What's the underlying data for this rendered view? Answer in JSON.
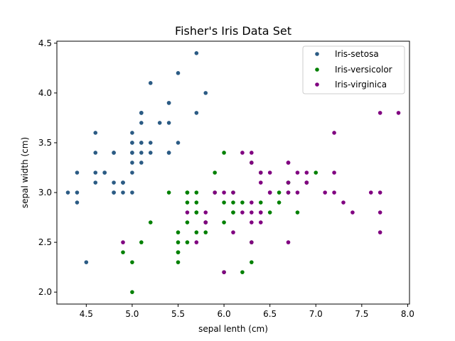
{
  "chart_data": {
    "type": "scatter",
    "title": "Fisher's Iris Data Set",
    "xlabel": "sepal lenth (cm)",
    "ylabel": "sepal width (cm)",
    "xlim": [
      4.18,
      8.02
    ],
    "ylim": [
      1.88,
      4.52
    ],
    "xticks": [
      "4.5",
      "5.0",
      "5.5",
      "6.0",
      "6.5",
      "7.0",
      "7.5",
      "8.0"
    ],
    "yticks": [
      "2.0",
      "2.5",
      "3.0",
      "3.5",
      "4.0",
      "4.5"
    ],
    "grid": false,
    "legend_position": "top-right",
    "series": [
      {
        "name": "Iris-setosa",
        "color": "#2b5b84",
        "points": [
          [
            5.1,
            3.5
          ],
          [
            4.9,
            3.0
          ],
          [
            4.7,
            3.2
          ],
          [
            4.6,
            3.1
          ],
          [
            5.0,
            3.6
          ],
          [
            5.4,
            3.9
          ],
          [
            4.6,
            3.4
          ],
          [
            5.0,
            3.4
          ],
          [
            4.4,
            2.9
          ],
          [
            4.9,
            3.1
          ],
          [
            5.4,
            3.7
          ],
          [
            4.8,
            3.4
          ],
          [
            4.8,
            3.0
          ],
          [
            4.3,
            3.0
          ],
          [
            5.8,
            4.0
          ],
          [
            5.7,
            4.4
          ],
          [
            5.4,
            3.9
          ],
          [
            5.1,
            3.5
          ],
          [
            5.7,
            3.8
          ],
          [
            5.1,
            3.8
          ],
          [
            5.4,
            3.4
          ],
          [
            5.1,
            3.7
          ],
          [
            4.6,
            3.6
          ],
          [
            5.1,
            3.3
          ],
          [
            4.8,
            3.4
          ],
          [
            5.0,
            3.0
          ],
          [
            5.0,
            3.4
          ],
          [
            5.2,
            3.5
          ],
          [
            5.2,
            3.4
          ],
          [
            4.7,
            3.2
          ],
          [
            4.8,
            3.1
          ],
          [
            5.4,
            3.4
          ],
          [
            5.2,
            4.1
          ],
          [
            5.5,
            4.2
          ],
          [
            4.9,
            3.1
          ],
          [
            5.0,
            3.2
          ],
          [
            5.5,
            3.5
          ],
          [
            4.9,
            3.1
          ],
          [
            4.4,
            3.0
          ],
          [
            5.1,
            3.4
          ],
          [
            5.0,
            3.5
          ],
          [
            4.5,
            2.3
          ],
          [
            4.4,
            3.2
          ],
          [
            5.0,
            3.5
          ],
          [
            5.1,
            3.8
          ],
          [
            4.8,
            3.0
          ],
          [
            5.1,
            3.8
          ],
          [
            4.6,
            3.2
          ],
          [
            5.3,
            3.7
          ],
          [
            5.0,
            3.3
          ]
        ]
      },
      {
        "name": "Iris-versicolor",
        "color": "#008000",
        "points": [
          [
            7.0,
            3.2
          ],
          [
            6.4,
            3.2
          ],
          [
            6.9,
            3.1
          ],
          [
            5.5,
            2.3
          ],
          [
            6.5,
            2.8
          ],
          [
            5.7,
            2.8
          ],
          [
            6.3,
            3.3
          ],
          [
            4.9,
            2.4
          ],
          [
            6.6,
            2.9
          ],
          [
            5.2,
            2.7
          ],
          [
            5.0,
            2.0
          ],
          [
            5.9,
            3.0
          ],
          [
            6.0,
            2.2
          ],
          [
            6.1,
            2.9
          ],
          [
            5.6,
            2.9
          ],
          [
            6.7,
            3.1
          ],
          [
            5.6,
            3.0
          ],
          [
            5.8,
            2.7
          ],
          [
            6.2,
            2.2
          ],
          [
            5.6,
            2.5
          ],
          [
            5.9,
            3.2
          ],
          [
            6.1,
            2.8
          ],
          [
            6.3,
            2.5
          ],
          [
            6.1,
            2.8
          ],
          [
            6.4,
            2.9
          ],
          [
            6.6,
            3.0
          ],
          [
            6.8,
            2.8
          ],
          [
            6.7,
            3.0
          ],
          [
            6.0,
            2.9
          ],
          [
            5.7,
            2.6
          ],
          [
            5.5,
            2.4
          ],
          [
            5.5,
            2.4
          ],
          [
            5.8,
            2.7
          ],
          [
            6.0,
            2.7
          ],
          [
            5.4,
            3.0
          ],
          [
            6.0,
            3.4
          ],
          [
            6.7,
            3.1
          ],
          [
            6.3,
            2.3
          ],
          [
            5.6,
            3.0
          ],
          [
            5.5,
            2.5
          ],
          [
            5.5,
            2.6
          ],
          [
            6.1,
            3.0
          ],
          [
            5.8,
            2.6
          ],
          [
            5.0,
            2.3
          ],
          [
            5.6,
            2.7
          ],
          [
            5.7,
            3.0
          ],
          [
            5.7,
            2.9
          ],
          [
            6.2,
            2.9
          ],
          [
            5.1,
            2.5
          ],
          [
            5.7,
            2.8
          ]
        ]
      },
      {
        "name": "Iris-virginica",
        "color": "#800080",
        "points": [
          [
            6.3,
            3.3
          ],
          [
            5.8,
            2.7
          ],
          [
            7.1,
            3.0
          ],
          [
            6.3,
            2.9
          ],
          [
            6.5,
            3.0
          ],
          [
            7.6,
            3.0
          ],
          [
            4.9,
            2.5
          ],
          [
            7.3,
            2.9
          ],
          [
            6.7,
            2.5
          ],
          [
            7.2,
            3.6
          ],
          [
            6.5,
            3.2
          ],
          [
            6.4,
            2.7
          ],
          [
            6.8,
            3.0
          ],
          [
            5.7,
            2.5
          ],
          [
            5.8,
            2.8
          ],
          [
            6.4,
            3.2
          ],
          [
            6.5,
            3.0
          ],
          [
            7.7,
            3.8
          ],
          [
            7.7,
            2.6
          ],
          [
            6.0,
            2.2
          ],
          [
            6.9,
            3.2
          ],
          [
            5.6,
            2.8
          ],
          [
            7.7,
            2.8
          ],
          [
            6.3,
            2.7
          ],
          [
            6.7,
            3.3
          ],
          [
            7.2,
            3.2
          ],
          [
            6.2,
            2.8
          ],
          [
            6.1,
            3.0
          ],
          [
            6.4,
            2.8
          ],
          [
            7.2,
            3.0
          ],
          [
            7.4,
            2.8
          ],
          [
            7.9,
            3.8
          ],
          [
            6.4,
            2.8
          ],
          [
            6.3,
            2.8
          ],
          [
            6.1,
            2.6
          ],
          [
            7.7,
            3.0
          ],
          [
            6.3,
            3.4
          ],
          [
            6.4,
            3.1
          ],
          [
            6.0,
            3.0
          ],
          [
            6.9,
            3.1
          ],
          [
            6.7,
            3.1
          ],
          [
            6.9,
            3.1
          ],
          [
            5.8,
            2.7
          ],
          [
            6.8,
            3.2
          ],
          [
            6.7,
            3.3
          ],
          [
            6.7,
            3.0
          ],
          [
            6.3,
            2.5
          ],
          [
            6.5,
            3.0
          ],
          [
            6.2,
            3.4
          ],
          [
            5.9,
            3.0
          ]
        ]
      }
    ]
  }
}
